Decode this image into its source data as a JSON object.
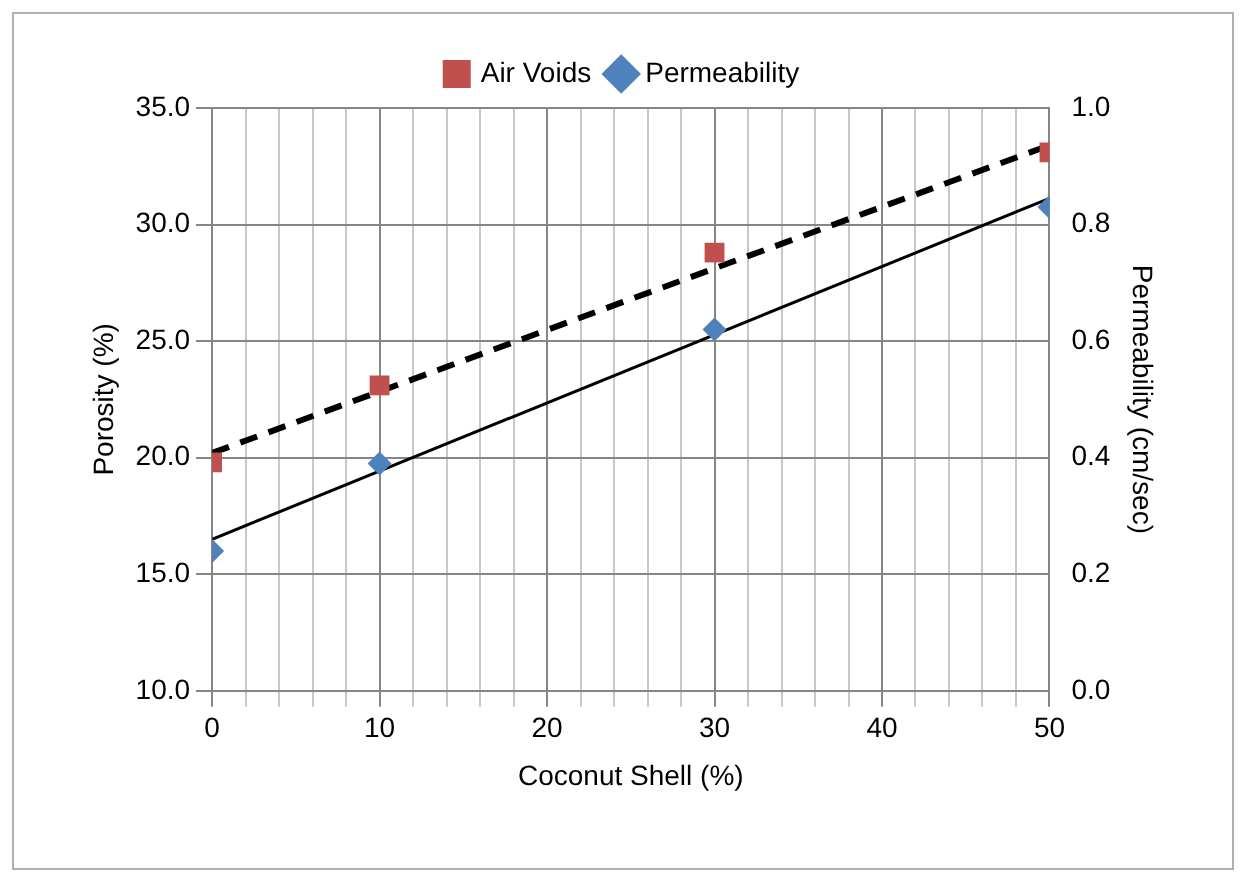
{
  "chart_data": {
    "type": "scatter",
    "xlabel": "Coconut Shell (%)",
    "ylabel": "Porosity (%)",
    "y2label": "Permeability (cm/sec)",
    "xlim": [
      0,
      50
    ],
    "xticks": [
      0,
      {
        "value": 2,
        "label": null
      },
      {
        "value": 4,
        "label": null
      },
      {
        "value": 6,
        "label": null
      },
      {
        "value": 8,
        "label": null
      },
      10,
      {
        "value": 12,
        "label": null
      },
      {
        "value": 14,
        "label": null
      },
      {
        "value": 16,
        "label": null
      },
      {
        "value": 18,
        "label": null
      },
      20,
      {
        "value": 22,
        "label": null
      },
      {
        "value": 24,
        "label": null
      },
      {
        "value": 26,
        "label": null
      },
      {
        "value": 28,
        "label": null
      },
      30,
      {
        "value": 32,
        "label": null
      },
      {
        "value": 34,
        "label": null
      },
      {
        "value": 36,
        "label": null
      },
      {
        "value": 38,
        "label": null
      },
      40,
      {
        "value": 42,
        "label": null
      },
      {
        "value": 44,
        "label": null
      },
      {
        "value": 46,
        "label": null
      },
      {
        "value": 48,
        "label": null
      },
      50
    ],
    "ylim": [
      10,
      35
    ],
    "yticks": [
      {
        "value": 10,
        "label": "10.0"
      },
      {
        "value": 15,
        "label": "15.0"
      },
      {
        "value": 20,
        "label": "20.0"
      },
      {
        "value": 25,
        "label": "25.0"
      },
      {
        "value": 30,
        "label": "30.0"
      },
      {
        "value": 35,
        "label": "35.0"
      }
    ],
    "y2lim": [
      0,
      1
    ],
    "y2ticks": [
      {
        "value": 0,
        "label": "0.0"
      },
      {
        "value": 0.2,
        "label": "0.2"
      },
      {
        "value": 0.4,
        "label": "0.4"
      },
      {
        "value": 0.6,
        "label": "0.6"
      },
      {
        "value": 0.8,
        "label": "0.8"
      },
      {
        "value": 1,
        "label": "1.0"
      }
    ],
    "grid": true,
    "legend": "top",
    "series": [
      {
        "name": "Air Voids",
        "type": "scatter",
        "marker": "square",
        "color": "#c0504d",
        "x": [
          0,
          10,
          30,
          50
        ],
        "values": [
          19.8,
          23.1,
          28.8,
          33.1
        ]
      },
      {
        "name": "Permeability",
        "type": "scatter",
        "marker": "diamond",
        "color": "#4f81bd",
        "axis": "y2",
        "x": [
          0,
          10,
          30,
          50
        ],
        "values": [
          0.24,
          0.39,
          0.62,
          0.83
        ]
      },
      {
        "type": "line",
        "color": "#000000",
        "line_style": "dashed",
        "marker": "none",
        "x": [
          0,
          50
        ],
        "values": [
          20.2,
          33.4
        ]
      },
      {
        "type": "line",
        "color": "#000000",
        "line_style": "solid",
        "marker": "none",
        "axis": "y2",
        "x": [
          0,
          50
        ],
        "values": [
          0.26,
          0.845
        ]
      }
    ]
  }
}
